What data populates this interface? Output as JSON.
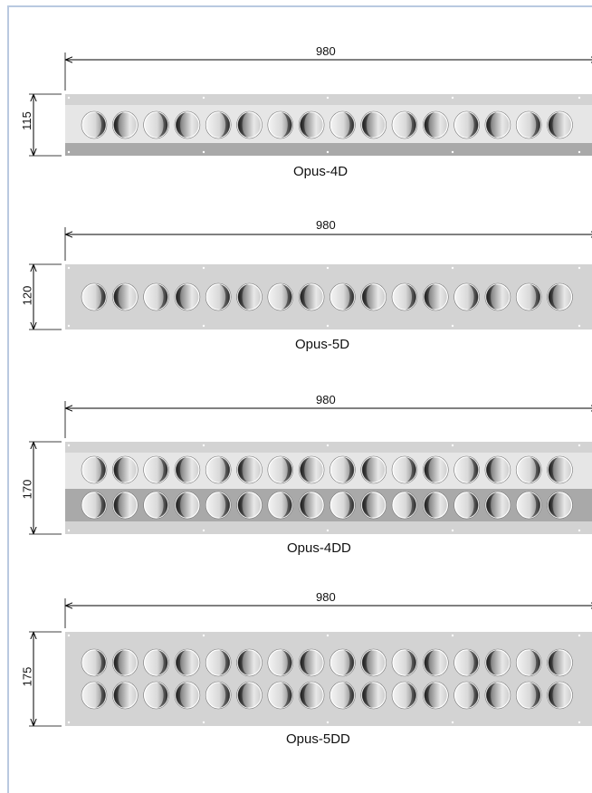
{
  "diagram": {
    "panels": [
      {
        "name": "Opus-4D",
        "width_dim": "980",
        "height_dim": "115",
        "rows": 1,
        "vents_per_row": 16,
        "style": "banded"
      },
      {
        "name": "Opus-5D",
        "width_dim": "980",
        "height_dim": "120",
        "rows": 1,
        "vents_per_row": 16,
        "style": "plain"
      },
      {
        "name": "Opus-4DD",
        "width_dim": "980",
        "height_dim": "170",
        "rows": 2,
        "vents_per_row": 16,
        "style": "banded"
      },
      {
        "name": "Opus-5DD",
        "width_dim": "980",
        "height_dim": "175",
        "rows": 2,
        "vents_per_row": 16,
        "style": "plain"
      }
    ],
    "colors": {
      "panel_light": "#e6e6e6",
      "panel_mid": "#d3d3d3",
      "panel_dark": "#a9a9a9",
      "line": "#000000",
      "frame": "#b9c9e0"
    }
  }
}
